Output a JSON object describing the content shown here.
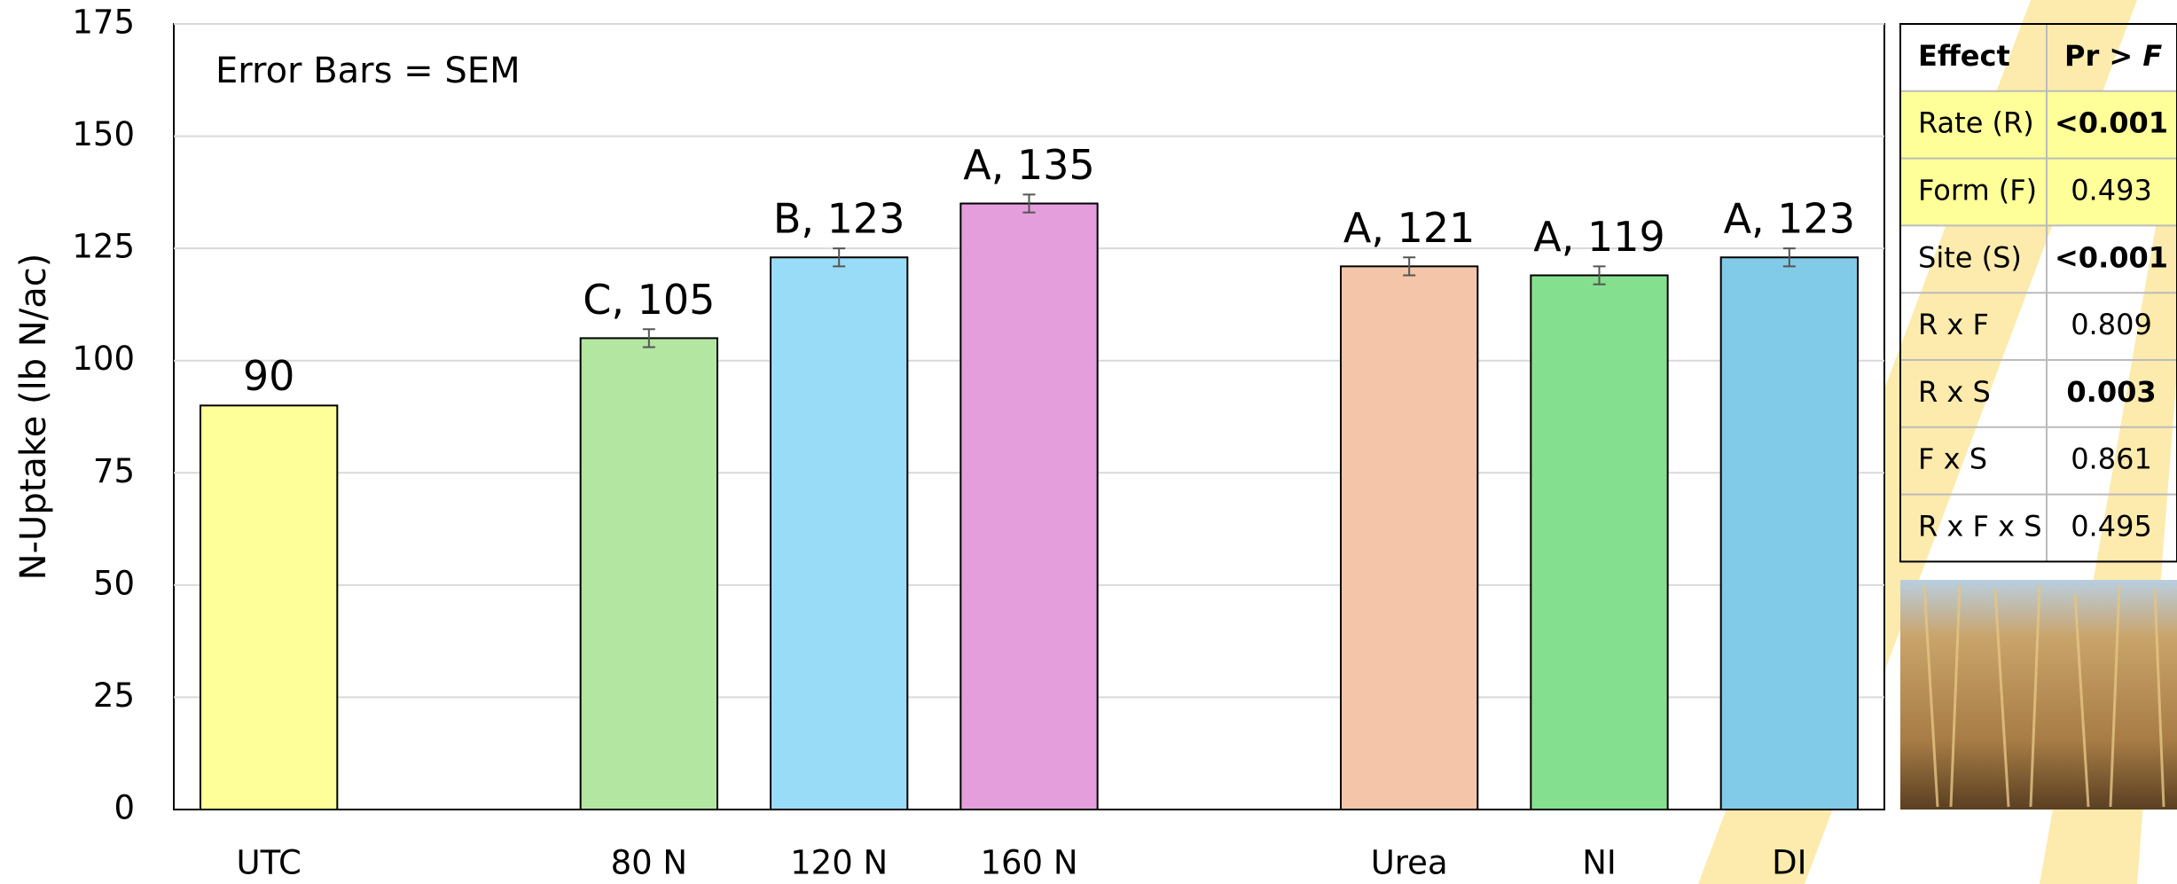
{
  "chart_data": {
    "type": "bar",
    "annotation": "Error Bars = SEM",
    "y_label": "N-Uptake (lb N/ac)",
    "categories": [
      "UTC",
      null,
      "80 N",
      "120 N",
      "160 N",
      null,
      "Urea",
      "NI",
      "DI"
    ],
    "values": [
      90,
      null,
      105,
      123,
      135,
      null,
      121,
      119,
      123
    ],
    "value_labels": [
      "90",
      null,
      "C, 105",
      "B, 123",
      "A, 135",
      null,
      "A, 121",
      "A, 119",
      "A, 123"
    ],
    "errors": [
      null,
      null,
      2,
      2,
      2,
      null,
      2,
      2,
      2
    ],
    "colors": [
      "#ffff99",
      null,
      "#b3e6a1",
      "#99dcf7",
      "#e59edc",
      null,
      "#f5c5aa",
      "#84e08f",
      "#82cbe8"
    ],
    "ylim": [
      0,
      175
    ],
    "yticks": [
      0,
      25,
      50,
      75,
      100,
      125,
      150,
      175
    ],
    "grid": true
  },
  "table": {
    "header": {
      "effect": "Effect",
      "p": "Pr >",
      "p_italic": "F"
    },
    "rows": [
      {
        "effect": "Rate (R)",
        "p": "<0.001",
        "bold": true,
        "highlight": true
      },
      {
        "effect": "Form (F)",
        "p": "0.493",
        "bold": false,
        "highlight": true
      },
      {
        "effect": "Site (S)",
        "p": "<0.001",
        "bold": true,
        "highlight": false
      },
      {
        "effect": "R x F",
        "p": "0.809",
        "bold": false,
        "highlight": false
      },
      {
        "effect": "R x S",
        "p": "0.003",
        "bold": true,
        "highlight": false
      },
      {
        "effect": "F x S",
        "p": "0.861",
        "bold": false,
        "highlight": false
      },
      {
        "effect": "R x F x S",
        "p": "0.495",
        "bold": false,
        "highlight": false
      }
    ]
  }
}
